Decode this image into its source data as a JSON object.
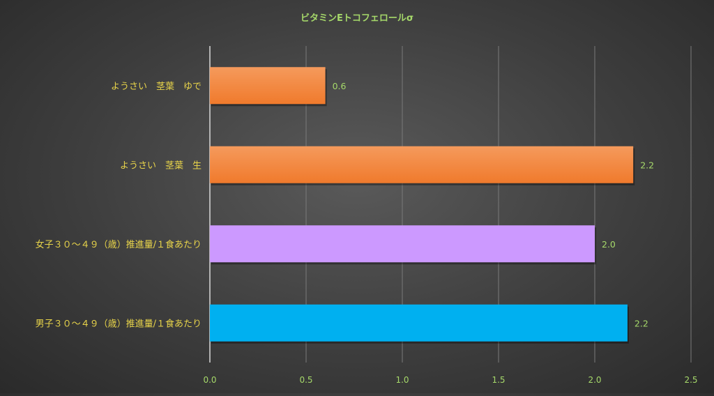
{
  "chart_data": {
    "type": "bar",
    "orientation": "horizontal",
    "title": "ビタミンEトコフェロールσ",
    "xlabel": "",
    "ylabel": "",
    "xlim": [
      0,
      2.5
    ],
    "xticks": [
      "0.0",
      "0.5",
      "1.0",
      "1.5",
      "2.0",
      "2.5"
    ],
    "grid": true,
    "legend": "none",
    "categories": [
      "ようさい　茎葉　ゆで",
      "ようさい　茎葉　生",
      "女子３０～４９（歳）推進量/１食あたり",
      "男子３０～４９（歳）推進量/１食あたり"
    ],
    "values": [
      0.6,
      2.2,
      2.0,
      2.17
    ],
    "value_labels": [
      "0.6",
      "2.2",
      "2.0",
      "2.2"
    ],
    "colors": [
      "#f07a2c",
      "#f07a2c",
      "#cc99ff",
      "#00b0f0"
    ],
    "colors_light": [
      "#f59a5c",
      "#f59a5c",
      "#cc99ff",
      "#00b0f0"
    ]
  }
}
